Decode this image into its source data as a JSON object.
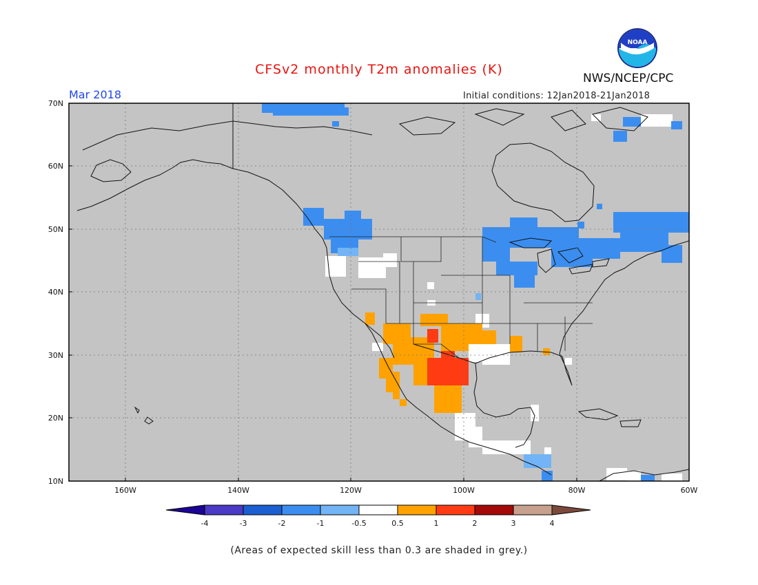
{
  "title": "CFSv2 monthly T2m anomalies (K)",
  "org": "NWS/NCEP/CPC",
  "period": "Mar 2018",
  "initial_conditions": "Initial conditions: 12Jan2018-21Jan2018",
  "footnote": "(Areas of expected skill less than 0.3 are shaded in grey.)",
  "logo_text": "NOAA",
  "lat_labels": [
    "70N",
    "60N",
    "50N",
    "40N",
    "30N",
    "20N",
    "10N"
  ],
  "lon_labels": [
    "160W",
    "140W",
    "120W",
    "100W",
    "80W",
    "60W"
  ],
  "colorbar": {
    "labels": [
      "-4",
      "-3",
      "-2",
      "-1",
      "-0.5",
      "0.5",
      "1",
      "2",
      "3",
      "4"
    ],
    "colors": [
      "#1c0494",
      "#4a3ac6",
      "#1c5fd2",
      "#3b8ef0",
      "#72b4f5",
      "#ffffff",
      "#ffa200",
      "#ff3b14",
      "#a30a08",
      "#c8a08e",
      "#7c4a3c"
    ]
  },
  "colors": {
    "ocean_land_grey": "#c4c4c4",
    "title_red": "#e8130f",
    "period_blue": "#2146e8"
  }
}
